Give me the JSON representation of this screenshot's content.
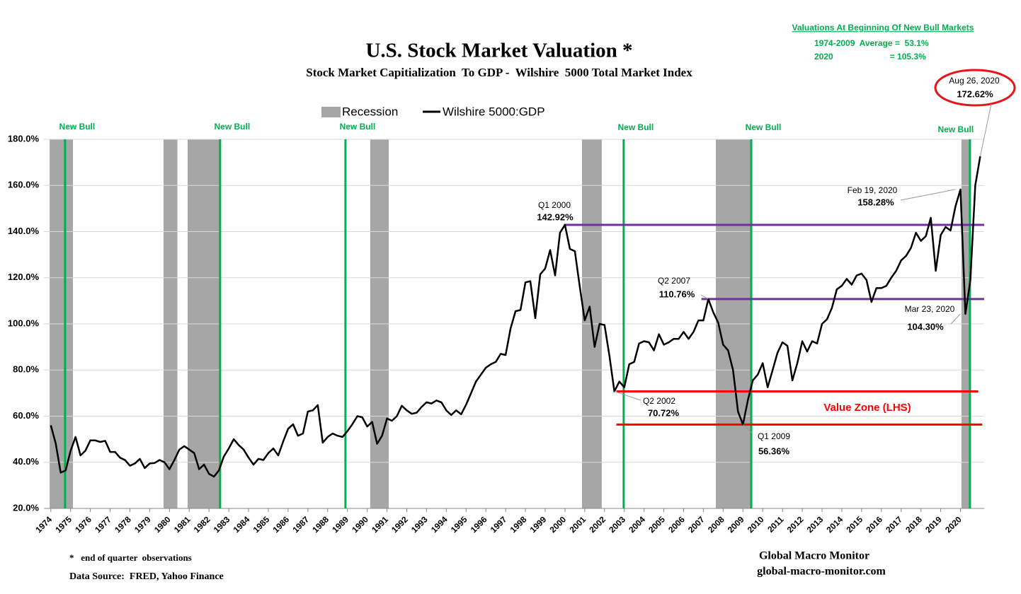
{
  "chart_data": {
    "type": "line",
    "title": "U.S. Stock Market Valuation *",
    "subtitle": "Stock Market Capitialization  To GDP -  Wilshire  5000 Total Market Index",
    "legend": "top",
    "grid": true,
    "x": [
      1974,
      1974.25,
      1974.5,
      1974.75,
      1975,
      1975.25,
      1975.5,
      1975.75,
      1976,
      1976.25,
      1976.5,
      1976.75,
      1977,
      1977.25,
      1977.5,
      1977.75,
      1978,
      1978.25,
      1978.5,
      1978.75,
      1979,
      1979.25,
      1979.5,
      1979.75,
      1980,
      1980.25,
      1980.5,
      1980.75,
      1981,
      1981.25,
      1981.5,
      1981.75,
      1982,
      1982.25,
      1982.5,
      1982.75,
      1983,
      1983.25,
      1983.5,
      1983.75,
      1984,
      1984.25,
      1984.5,
      1984.75,
      1985,
      1985.25,
      1985.5,
      1985.75,
      1986,
      1986.25,
      1986.5,
      1986.75,
      1987,
      1987.25,
      1987.5,
      1987.75,
      1988,
      1988.25,
      1988.5,
      1988.75,
      1989,
      1989.25,
      1989.5,
      1989.75,
      1990,
      1990.25,
      1990.5,
      1990.75,
      1991,
      1991.25,
      1991.5,
      1991.75,
      1992,
      1992.25,
      1992.5,
      1992.75,
      1993,
      1993.25,
      1993.5,
      1993.75,
      1994,
      1994.25,
      1994.5,
      1994.75,
      1995,
      1995.25,
      1995.5,
      1995.75,
      1996,
      1996.25,
      1996.5,
      1996.75,
      1997,
      1997.25,
      1997.5,
      1997.75,
      1998,
      1998.25,
      1998.5,
      1998.75,
      1999,
      1999.25,
      1999.5,
      1999.75,
      2000,
      2000.25,
      2000.5,
      2000.75,
      2001,
      2001.25,
      2001.5,
      2001.75,
      2002,
      2002.25,
      2002.5,
      2002.75,
      2003,
      2003.25,
      2003.5,
      2003.75,
      2004,
      2004.25,
      2004.5,
      2004.75,
      2005,
      2005.25,
      2005.5,
      2005.75,
      2006,
      2006.25,
      2006.5,
      2006.75,
      2007,
      2007.25,
      2007.5,
      2007.75,
      2008,
      2008.25,
      2008.5,
      2008.75,
      2009,
      2009.25,
      2009.5,
      2009.75,
      2010,
      2010.25,
      2010.5,
      2010.75,
      2011,
      2011.25,
      2011.5,
      2011.75,
      2012,
      2012.25,
      2012.5,
      2012.75,
      2013,
      2013.25,
      2013.5,
      2013.75,
      2014,
      2014.25,
      2014.5,
      2014.75,
      2015,
      2015.25,
      2015.5,
      2015.75,
      2016,
      2016.25,
      2016.5,
      2016.75,
      2017,
      2017.25,
      2017.5,
      2017.75,
      2018,
      2018.25,
      2018.5,
      2018.75,
      2019,
      2019.25,
      2019.5,
      2019.75,
      2020,
      2020.25,
      2020.5,
      2020.75,
      2021
    ],
    "xlim": [
      1973.65,
      2021.2
    ],
    "xticks": [
      1974,
      1975,
      1976,
      1977,
      1978,
      1979,
      1980,
      1981,
      1982,
      1983,
      1984,
      1985,
      1986,
      1987,
      1988,
      1989,
      1990,
      1991,
      1992,
      1993,
      1994,
      1995,
      1996,
      1997,
      1998,
      1999,
      2000,
      2001,
      2002,
      2003,
      2004,
      2005,
      2006,
      2007,
      2008,
      2009,
      2010,
      2011,
      2012,
      2013,
      2014,
      2015,
      2016,
      2017,
      2018,
      2019,
      2020
    ],
    "ylim": [
      20,
      180
    ],
    "yticks": [
      {
        "value": 20,
        "label": "20.0%"
      },
      {
        "value": 40,
        "label": "40.0%"
      },
      {
        "value": 60,
        "label": "60.0%"
      },
      {
        "value": 80,
        "label": "80.0%"
      },
      {
        "value": 100,
        "label": "100.0%"
      },
      {
        "value": 120,
        "label": "120.0%"
      },
      {
        "value": 140,
        "label": "140.0%"
      },
      {
        "value": 160,
        "label": "160.0%"
      },
      {
        "value": 180,
        "label": "180.0%"
      }
    ],
    "series": [
      {
        "name": "Wilshire 5000:GDP",
        "color": "#000000",
        "values": [
          56,
          48,
          35.5,
          36.5,
          45,
          51,
          43,
          45,
          49.5,
          49.5,
          48.8,
          49.3,
          44.5,
          44.5,
          42,
          41,
          38.5,
          39.5,
          41.5,
          37.5,
          39.5,
          39.7,
          41,
          40,
          37,
          41,
          45.5,
          47,
          45.5,
          44,
          37,
          39,
          35,
          33.8,
          36.5,
          42.5,
          46,
          50,
          47.5,
          45.5,
          42,
          39,
          41.5,
          41,
          44,
          46,
          43,
          49,
          54.5,
          56.5,
          51.5,
          52.5,
          62,
          62.5,
          64.8,
          48.5,
          51,
          52.5,
          51.5,
          51,
          53.5,
          56.5,
          60,
          59.5,
          55.5,
          57.5,
          48,
          51.5,
          59,
          58,
          60,
          64.5,
          62.5,
          61,
          61.5,
          64,
          66,
          65.5,
          66.8,
          66,
          62.5,
          60.5,
          62.5,
          60.8,
          65,
          70,
          75,
          78,
          81,
          82.5,
          83.5,
          87,
          86.5,
          98,
          105.5,
          106,
          118,
          118.5,
          102.5,
          121.5,
          124,
          132,
          121,
          139.5,
          142.92,
          132.5,
          131.5,
          116,
          101.5,
          107.5,
          90,
          100,
          99.5,
          86,
          70.72,
          75,
          72.5,
          82.5,
          83.5,
          91.5,
          92.5,
          92,
          88.5,
          95.5,
          91,
          92,
          93.5,
          93.5,
          96.5,
          93.5,
          96.5,
          101.5,
          101.5,
          110.76,
          105,
          100.5,
          91,
          88.5,
          80,
          62,
          56.36,
          67,
          75.5,
          78,
          83,
          72.5,
          80,
          87.5,
          92,
          90.5,
          75.5,
          83,
          92.5,
          88,
          92.5,
          91.5,
          100,
          102,
          107,
          115,
          116.5,
          119.5,
          117,
          121,
          121.8,
          119,
          109.5,
          115.5,
          115.5,
          116.5,
          120,
          123,
          127.5,
          129.5,
          133,
          139.5,
          136,
          138,
          146,
          123,
          138.5,
          142,
          140.5,
          151,
          158.28,
          104.3,
          119,
          160,
          172.62
        ]
      }
    ],
    "recession": {
      "name": "Recession",
      "color": "#a6a6a6",
      "periods": [
        [
          1973.94,
          1975.12
        ],
        [
          1979.7,
          1980.4
        ],
        [
          1980.92,
          1982.56
        ],
        [
          1990.15,
          1991.09
        ],
        [
          2000.86,
          2001.86
        ],
        [
          2007.63,
          2009.45
        ],
        [
          2020.05,
          2020.48
        ]
      ]
    },
    "new_bull": {
      "label": "New Bull",
      "color": "#00b050",
      "x": [
        1974.72,
        1982.56,
        1988.9,
        2002.97,
        2009.42,
        2020.48
      ]
    },
    "reference_lines": [
      {
        "value": 142.92,
        "x": [
          1999.95,
          2021.2
        ],
        "color": "#7030a0"
      },
      {
        "value": 110.76,
        "x": [
          2006.9,
          2021.2
        ],
        "color": "#7030a0"
      },
      {
        "value": 70.72,
        "x": [
          2002.6,
          2020.9
        ],
        "color": "#ff0000"
      },
      {
        "value": 56.36,
        "x": [
          2002.6,
          2021.1
        ],
        "color": "#ff0000"
      }
    ],
    "value_zone": {
      "label": "Value Zone (LHS)",
      "color": "#ff0000"
    },
    "callouts": [
      {
        "title": "Q1 2000",
        "x": 2000,
        "value": 142.92,
        "value_label": "142.92%"
      },
      {
        "title": "Q2 2007",
        "x": 2007.25,
        "value": 110.76,
        "value_label": "110.76%"
      },
      {
        "title": "Q2 2002",
        "x": 2002.5,
        "value": 70.72,
        "value_label": "70.72%"
      },
      {
        "title": "Q1 2009",
        "x": 2009,
        "value": 56.36,
        "value_label": "56.36%"
      },
      {
        "title": "Feb 19, 2020",
        "x": 2019.75,
        "value": 158.28,
        "value_label": "158.28%"
      },
      {
        "title": "Mar 23, 2020",
        "x": 2020,
        "value": 104.3,
        "value_label": "104.30%"
      },
      {
        "title": "Aug 26, 2020",
        "x": 2021,
        "value": 172.62,
        "value_label": "172.62%"
      }
    ]
  },
  "notes": {
    "title": "Valuations At Beginning Of New Bull Markets",
    "lines": [
      "1974-2009  Average =  53.1%",
      "2020                        = 105.3%"
    ]
  },
  "footer": {
    "left": [
      "*   end of quarter  observations",
      "Data Source:  FRED, Yahoo Finance"
    ],
    "right": [
      "Global Macro Monitor",
      "global-macro-monitor.com"
    ]
  }
}
